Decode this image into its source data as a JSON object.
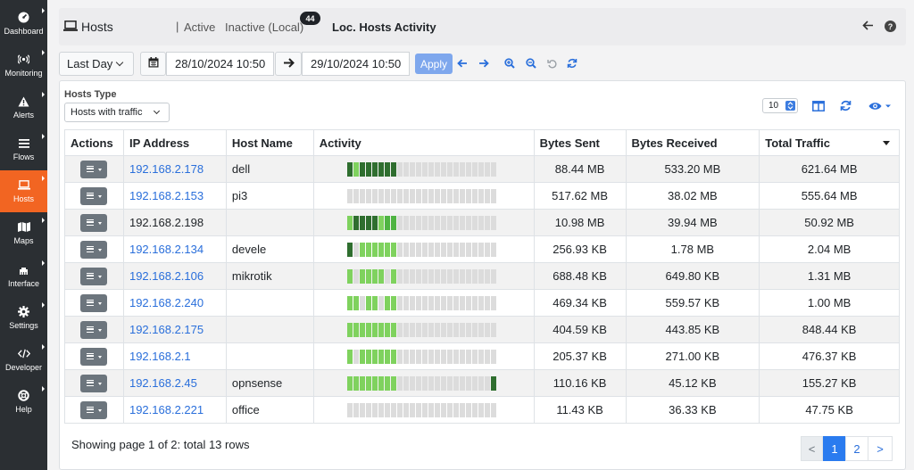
{
  "sidebar": {
    "items": [
      {
        "label": "Dashboard",
        "icon": "gauge-icon"
      },
      {
        "label": "Monitoring",
        "icon": "signal-icon"
      },
      {
        "label": "Alerts",
        "icon": "warning-icon"
      },
      {
        "label": "Flows",
        "icon": "list-icon"
      },
      {
        "label": "Hosts",
        "icon": "laptop-icon",
        "active": true
      },
      {
        "label": "Maps",
        "icon": "map-icon"
      },
      {
        "label": "Interface",
        "icon": "ethernet-icon"
      },
      {
        "label": "Settings",
        "icon": "gear-icon"
      },
      {
        "label": "Developer",
        "icon": "code-icon"
      },
      {
        "label": "Help",
        "icon": "lifering-icon"
      }
    ],
    "accent": "#f26522"
  },
  "header": {
    "hosts_label": "Hosts",
    "separator": "|",
    "active_label": "Active",
    "inactive_label": "Inactive (Local)",
    "inactive_count": "44",
    "title": "Loc. Hosts Activity"
  },
  "toolbar": {
    "period": "Last Day",
    "date_from": "28/10/2024 10:50",
    "date_to": "29/10/2024 10:50",
    "apply_label": "Apply"
  },
  "filters": {
    "hosts_type_label": "Hosts Type",
    "hosts_type_value": "Hosts with traffic",
    "per_page": "10"
  },
  "table": {
    "headers": [
      "Actions",
      "IP Address",
      "Host Name",
      "Activity",
      "Bytes Sent",
      "Bytes Received",
      "Total Traffic"
    ],
    "rows": [
      {
        "ip": "192.168.2.178",
        "link": true,
        "host": "dell",
        "sent": "88.44 MB",
        "recv": "533.20 MB",
        "total": "621.64 MB",
        "activity": [
          "D",
          "L",
          "D",
          "D",
          "D",
          "D",
          "D",
          "D",
          "G",
          "G",
          "G",
          "G",
          "G",
          "G",
          "G",
          "G",
          "G",
          "G",
          "G",
          "G",
          "G",
          "G",
          "G",
          "G"
        ]
      },
      {
        "ip": "192.168.2.153",
        "link": true,
        "host": "pi3",
        "sent": "517.62 MB",
        "recv": "38.02 MB",
        "total": "555.64 MB",
        "activity": [
          "G",
          "G",
          "G",
          "G",
          "G",
          "G",
          "G",
          "G",
          "G",
          "G",
          "G",
          "G",
          "G",
          "G",
          "G",
          "G",
          "G",
          "G",
          "G",
          "G",
          "G",
          "G",
          "G",
          "G"
        ]
      },
      {
        "ip": "192.168.2.198",
        "link": false,
        "host": "",
        "sent": "10.98 MB",
        "recv": "39.94 MB",
        "total": "50.92 MB",
        "activity": [
          "L",
          "D",
          "D",
          "D",
          "D",
          "L",
          "M",
          "M",
          "G",
          "G",
          "G",
          "G",
          "G",
          "G",
          "G",
          "G",
          "G",
          "G",
          "G",
          "G",
          "G",
          "G",
          "G",
          "G"
        ]
      },
      {
        "ip": "192.168.2.134",
        "link": true,
        "host": "devele",
        "sent": "256.93 KB",
        "recv": "1.78 MB",
        "total": "2.04 MB",
        "activity": [
          "D",
          "G",
          "L",
          "L",
          "L",
          "L",
          "L",
          "L",
          "G",
          "G",
          "G",
          "G",
          "G",
          "G",
          "G",
          "G",
          "G",
          "G",
          "G",
          "G",
          "G",
          "G",
          "G",
          "G"
        ]
      },
      {
        "ip": "192.168.2.106",
        "link": true,
        "host": "mikrotik",
        "sent": "688.48 KB",
        "recv": "649.80 KB",
        "total": "1.31 MB",
        "activity": [
          "L",
          "G",
          "L",
          "L",
          "L",
          "L",
          "G",
          "L",
          "G",
          "G",
          "G",
          "G",
          "G",
          "G",
          "G",
          "G",
          "G",
          "G",
          "G",
          "G",
          "G",
          "G",
          "G",
          "G"
        ]
      },
      {
        "ip": "192.168.2.240",
        "link": true,
        "host": "",
        "sent": "469.34 KB",
        "recv": "559.57 KB",
        "total": "1.00 MB",
        "activity": [
          "L",
          "L",
          "G",
          "L",
          "L",
          "G",
          "L",
          "L",
          "G",
          "G",
          "G",
          "G",
          "G",
          "G",
          "G",
          "G",
          "G",
          "G",
          "G",
          "G",
          "G",
          "G",
          "G",
          "G"
        ]
      },
      {
        "ip": "192.168.2.175",
        "link": true,
        "host": "",
        "sent": "404.59 KB",
        "recv": "443.85 KB",
        "total": "848.44 KB",
        "activity": [
          "L",
          "L",
          "L",
          "L",
          "L",
          "L",
          "L",
          "L",
          "G",
          "G",
          "G",
          "G",
          "G",
          "G",
          "G",
          "G",
          "G",
          "G",
          "G",
          "G",
          "G",
          "G",
          "G",
          "G"
        ]
      },
      {
        "ip": "192.168.2.1",
        "link": true,
        "host": "",
        "sent": "205.37 KB",
        "recv": "271.00 KB",
        "total": "476.37 KB",
        "activity": [
          "L",
          "G",
          "L",
          "L",
          "L",
          "L",
          "L",
          "L",
          "G",
          "G",
          "G",
          "G",
          "G",
          "G",
          "G",
          "G",
          "G",
          "G",
          "G",
          "G",
          "G",
          "G",
          "G",
          "G"
        ]
      },
      {
        "ip": "192.168.2.45",
        "link": true,
        "host": "opnsense",
        "sent": "110.16 KB",
        "recv": "45.12 KB",
        "total": "155.27 KB",
        "activity": [
          "L",
          "L",
          "L",
          "L",
          "L",
          "L",
          "L",
          "L",
          "G",
          "G",
          "G",
          "G",
          "G",
          "G",
          "G",
          "G",
          "G",
          "G",
          "G",
          "G",
          "G",
          "G",
          "G",
          "D"
        ]
      },
      {
        "ip": "192.168.2.221",
        "link": true,
        "host": "office",
        "sent": "11.43 KB",
        "recv": "36.33 KB",
        "total": "47.75 KB",
        "activity": [
          "G",
          "G",
          "G",
          "G",
          "G",
          "G",
          "G",
          "G",
          "G",
          "G",
          "G",
          "G",
          "G",
          "G",
          "G",
          "G",
          "G",
          "G",
          "G",
          "G",
          "G",
          "G",
          "G",
          "G"
        ]
      }
    ]
  },
  "activity_colors": {
    "D": "#2f6e2f",
    "M": "#4fb442",
    "L": "#7fd25e",
    "G": "#dcdcdc"
  },
  "footer": {
    "summary": "Showing page 1 of 2: total 13 rows",
    "pager": {
      "prev": "<",
      "pages": [
        "1",
        "2"
      ],
      "next": ">",
      "current": "1"
    }
  }
}
